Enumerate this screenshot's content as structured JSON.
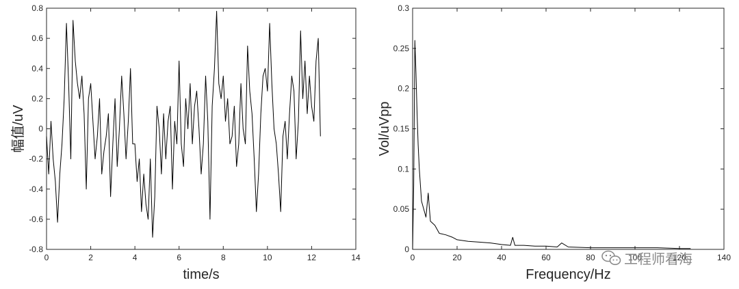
{
  "chart_data": [
    {
      "type": "line",
      "title": "",
      "xlabel": "time/s",
      "ylabel": "幅值/uV",
      "xlim": [
        0,
        14
      ],
      "ylim": [
        -0.8,
        0.8
      ],
      "xticks": [
        "0",
        "2",
        "4",
        "6",
        "8",
        "10",
        "12",
        "14"
      ],
      "yticks": [
        "-0.8",
        "-0.6",
        "-0.4",
        "-0.2",
        "0",
        "0.2",
        "0.4",
        "0.6",
        "0.8"
      ],
      "grid": false,
      "line_color": "#000000",
      "series": [
        {
          "x": [
            0.0,
            0.1,
            0.2,
            0.3,
            0.4,
            0.5,
            0.6,
            0.7,
            0.8,
            0.9,
            1.0,
            1.1,
            1.2,
            1.3,
            1.4,
            1.5,
            1.6,
            1.7,
            1.8,
            1.9,
            2.0,
            2.1,
            2.2,
            2.3,
            2.4,
            2.5,
            2.6,
            2.7,
            2.8,
            2.9,
            3.0,
            3.1,
            3.2,
            3.3,
            3.4,
            3.5,
            3.6,
            3.7,
            3.8,
            3.9,
            4.0,
            4.1,
            4.2,
            4.3,
            4.4,
            4.5,
            4.6,
            4.7,
            4.8,
            4.9,
            5.0,
            5.1,
            5.2,
            5.3,
            5.4,
            5.5,
            5.6,
            5.7,
            5.8,
            5.9,
            6.0,
            6.1,
            6.2,
            6.3,
            6.4,
            6.5,
            6.6,
            6.7,
            6.8,
            6.9,
            7.0,
            7.1,
            7.2,
            7.3,
            7.4,
            7.5,
            7.6,
            7.7,
            7.8,
            7.9,
            8.0,
            8.1,
            8.2,
            8.3,
            8.4,
            8.5,
            8.6,
            8.7,
            8.8,
            8.9,
            9.0,
            9.1,
            9.2,
            9.3,
            9.4,
            9.5,
            9.6,
            9.7,
            9.8,
            9.9,
            10.0,
            10.1,
            10.2,
            10.3,
            10.4,
            10.5,
            10.6,
            10.7,
            10.8,
            10.9,
            11.0,
            11.1,
            11.2,
            11.3,
            11.4,
            11.5,
            11.6,
            11.7,
            11.8,
            11.9,
            12.0,
            12.1,
            12.2,
            12.3,
            12.4
          ],
          "y": [
            -0.05,
            -0.3,
            0.05,
            -0.2,
            -0.35,
            -0.62,
            -0.3,
            -0.1,
            0.2,
            0.7,
            0.3,
            -0.2,
            0.72,
            0.45,
            0.3,
            0.2,
            0.35,
            0.1,
            -0.4,
            0.2,
            0.3,
            0.05,
            -0.2,
            -0.05,
            0.2,
            -0.3,
            -0.15,
            -0.05,
            0.1,
            -0.45,
            -0.1,
            0.2,
            -0.25,
            0.0,
            0.35,
            0.1,
            -0.2,
            0.05,
            0.4,
            -0.1,
            -0.1,
            -0.35,
            -0.2,
            -0.55,
            -0.3,
            -0.5,
            -0.6,
            -0.2,
            -0.72,
            -0.45,
            0.15,
            0.0,
            -0.3,
            0.1,
            -0.2,
            0.05,
            0.15,
            -0.4,
            0.05,
            -0.1,
            0.45,
            -0.1,
            -0.25,
            0.2,
            0.0,
            0.3,
            -0.1,
            0.15,
            0.25,
            0.0,
            -0.3,
            -0.1,
            0.35,
            0.05,
            -0.6,
            0.15,
            0.4,
            0.78,
            0.3,
            0.2,
            0.35,
            0.05,
            0.2,
            -0.1,
            -0.05,
            0.15,
            -0.25,
            -0.1,
            0.3,
            0.0,
            -0.1,
            0.55,
            0.25,
            0.1,
            -0.2,
            -0.55,
            -0.3,
            0.1,
            0.35,
            0.4,
            0.25,
            0.7,
            0.3,
            0.0,
            -0.1,
            -0.3,
            -0.55,
            -0.05,
            0.05,
            -0.2,
            0.1,
            0.35,
            0.25,
            -0.2,
            0.05,
            0.65,
            0.2,
            0.45,
            0.1,
            0.35,
            0.15,
            0.05,
            0.45,
            0.6,
            -0.05
          ]
        }
      ]
    },
    {
      "type": "line",
      "title": "",
      "xlabel": "Frequency/Hz",
      "ylabel": "Vol/uVpp",
      "xlim": [
        0,
        140
      ],
      "ylim": [
        0,
        0.3
      ],
      "xticks": [
        "0",
        "20",
        "40",
        "60",
        "80",
        "100",
        "120",
        "140"
      ],
      "yticks": [
        "0",
        "0.05",
        "0.1",
        "0.15",
        "0.2",
        "0.25",
        "0.3"
      ],
      "grid": false,
      "line_color": "#000000",
      "series": [
        {
          "x": [
            0.0,
            0.5,
            1.0,
            1.5,
            2.0,
            2.5,
            3.0,
            3.5,
            4.0,
            5.0,
            6.0,
            7.0,
            8.0,
            10.0,
            12.0,
            15.0,
            18.0,
            20.0,
            25.0,
            30.0,
            35.0,
            40.0,
            44.0,
            45.0,
            46.0,
            50.0,
            55.0,
            60.0,
            65.0,
            67.0,
            70.0,
            80.0,
            90.0,
            100.0,
            110.0,
            120.0,
            125.0
          ],
          "y": [
            0.0,
            0.08,
            0.26,
            0.22,
            0.17,
            0.13,
            0.1,
            0.08,
            0.06,
            0.05,
            0.04,
            0.07,
            0.035,
            0.03,
            0.02,
            0.018,
            0.015,
            0.012,
            0.01,
            0.009,
            0.008,
            0.006,
            0.005,
            0.015,
            0.005,
            0.005,
            0.004,
            0.004,
            0.003,
            0.008,
            0.003,
            0.002,
            0.002,
            0.002,
            0.002,
            0.001,
            0.001
          ]
        }
      ]
    }
  ],
  "watermark": {
    "text": "工程师看海",
    "icon": "wechat-icon"
  }
}
